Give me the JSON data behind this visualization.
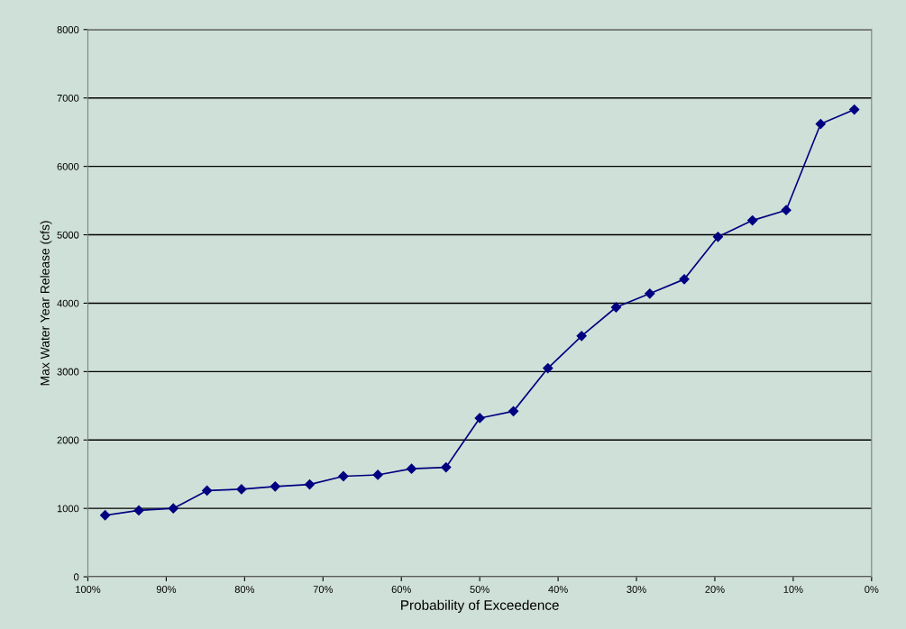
{
  "chart_data": {
    "type": "line",
    "xlabel": "Probability of Exceedence",
    "ylabel": "Max Water Year Release (cfs)",
    "x": [
      97.8,
      93.5,
      89.1,
      84.8,
      80.4,
      76.1,
      71.7,
      67.4,
      63.0,
      58.7,
      54.3,
      50.0,
      45.7,
      41.3,
      37.0,
      32.6,
      28.3,
      23.9,
      19.6,
      15.2,
      10.9,
      6.5,
      2.2
    ],
    "series": [
      {
        "color": "#000080",
        "values": [
          900,
          970,
          1000,
          1260,
          1280,
          1320,
          1350,
          1470,
          1490,
          1580,
          1600,
          2320,
          2420,
          3050,
          3520,
          3940,
          4140,
          4350,
          4970,
          5210,
          5360,
          6620,
          6830
        ]
      }
    ],
    "xlim": [
      100,
      0
    ],
    "xticks": [
      {
        "value": 100,
        "label": "100%"
      },
      {
        "value": 90,
        "label": "90%"
      },
      {
        "value": 80,
        "label": "80%"
      },
      {
        "value": 70,
        "label": "70%"
      },
      {
        "value": 60,
        "label": "60%"
      },
      {
        "value": 50,
        "label": "50%"
      },
      {
        "value": 40,
        "label": "40%"
      },
      {
        "value": 30,
        "label": "30%"
      },
      {
        "value": 20,
        "label": "20%"
      },
      {
        "value": 10,
        "label": "10%"
      },
      {
        "value": 0,
        "label": "0%"
      }
    ],
    "ylim": [
      0,
      8000
    ],
    "yticks": [
      0,
      1000,
      2000,
      3000,
      4000,
      5000,
      6000,
      7000,
      8000
    ],
    "grid": "y",
    "marker": "diamond",
    "line_style": "solid",
    "legend": false
  }
}
